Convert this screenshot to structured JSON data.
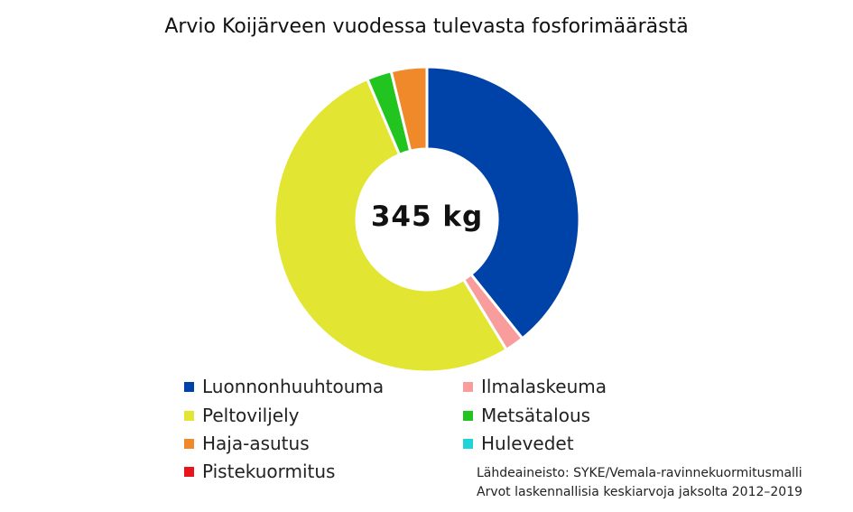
{
  "chart_data": {
    "type": "donut",
    "title": "Arvio Koijärveen vuodessa tulevasta fosforimäärästä",
    "center_label": "345 kg",
    "unit": "kg",
    "total": 345,
    "legend_placement": "bottom",
    "categories": [
      "Luonnonhuuhtouma",
      "Ilmalaskeuma",
      "Peltoviljely",
      "Metsätalous",
      "Haja-asutus",
      "Hulevedet",
      "Pistekuormitus"
    ],
    "values": [
      135,
      7,
      180,
      9,
      13,
      0,
      0
    ],
    "colors": [
      "#0043A8",
      "#F99C9C",
      "#E2E633",
      "#22C41F",
      "#F0892A",
      "#1ED4D6",
      "#E8161C"
    ]
  },
  "source": {
    "line1": "Lähdeaineisto: SYKE/Vemala-ravinnekuormitusmalli",
    "line2": "Arvot laskennallisia keskiarvoja jaksolta 2012–2019"
  }
}
